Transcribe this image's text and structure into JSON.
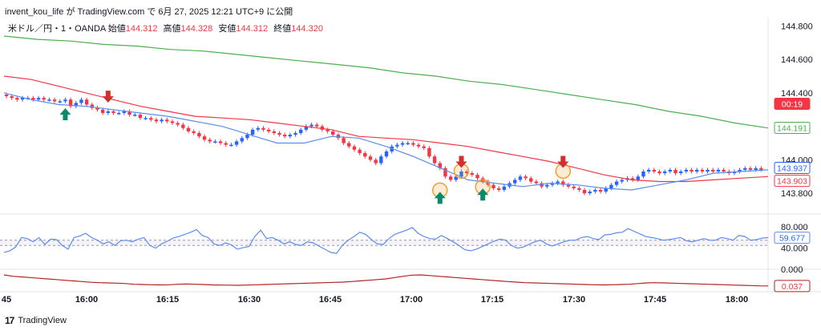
{
  "header": {
    "text": "invent_kou_life が TradingView.com で 6月 27, 2025 12:21 UTC+9 に公開"
  },
  "symbol": {
    "name": "米ドル／円・1・OANDA",
    "open_label": "始値",
    "open": "144.312",
    "high_label": "高値",
    "high": "144.328",
    "low_label": "安値",
    "low": "144.312",
    "close_label": "終値",
    "close": "144.320"
  },
  "footer": {
    "brand": "TradingView",
    "logo_text": "17"
  },
  "colors": {
    "up": "#2962ff",
    "down": "#f23645",
    "ema_fast": "#5b8def",
    "ema_mid": "#f23645",
    "ema_slow": "#4caf50",
    "rsi": "#5b8def",
    "sub": "#b22222",
    "arrow_down": "#d32f2f",
    "arrow_up": "#0b8a6b",
    "circle": "#f0a030"
  },
  "chart_data": [
    {
      "type": "candlestick",
      "title": "米ドル／円・1・OANDA",
      "ylim": [
        143.7,
        144.85
      ],
      "y_ticks": [
        "144.800",
        "144.600",
        "144.400",
        "144.000",
        "143.800"
      ],
      "x_ticks": [
        "45",
        "16:00",
        "16:15",
        "16:30",
        "16:45",
        "17:00",
        "17:15",
        "17:30",
        "17:45",
        "18:00"
      ],
      "price_labels": [
        {
          "text": "00:19",
          "value": 144.335,
          "color": "#f23645"
        },
        {
          "text": "144.191",
          "value": 144.191,
          "color": "#4caf50"
        },
        {
          "text": "143.937",
          "value": 143.937,
          "color": "#2962ff"
        },
        {
          "text": "143.903",
          "value": 143.903,
          "color": "#f23645"
        }
      ],
      "closes": [
        144.38,
        144.37,
        144.36,
        144.37,
        144.37,
        144.36,
        144.37,
        144.36,
        144.36,
        144.35,
        144.35,
        144.36,
        144.32,
        144.34,
        144.36,
        144.33,
        144.31,
        144.3,
        144.28,
        144.29,
        144.28,
        144.28,
        144.29,
        144.27,
        144.27,
        144.25,
        144.25,
        144.24,
        144.23,
        144.24,
        144.23,
        144.22,
        144.21,
        144.19,
        144.17,
        144.16,
        144.14,
        144.12,
        144.11,
        144.11,
        144.1,
        144.09,
        144.09,
        144.11,
        144.13,
        144.15,
        144.18,
        144.19,
        144.18,
        144.17,
        144.16,
        144.15,
        144.14,
        144.15,
        144.16,
        144.18,
        144.2,
        144.21,
        144.2,
        144.18,
        144.17,
        144.15,
        144.13,
        144.1,
        144.08,
        144.06,
        144.04,
        144.02,
        144.0,
        143.98,
        144.02,
        144.05,
        144.08,
        144.09,
        144.1,
        144.1,
        144.09,
        144.08,
        144.07,
        144.02,
        143.98,
        143.95,
        143.9,
        143.88,
        143.9,
        143.93,
        143.92,
        143.91,
        143.89,
        143.87,
        143.85,
        143.83,
        143.82,
        143.84,
        143.86,
        143.88,
        143.9,
        143.89,
        143.87,
        143.86,
        143.84,
        143.85,
        143.86,
        143.87,
        143.85,
        143.84,
        143.83,
        143.82,
        143.8,
        143.81,
        143.82,
        143.81,
        143.83,
        143.85,
        143.87,
        143.88,
        143.89,
        143.88,
        143.9,
        143.93,
        143.94,
        143.93,
        143.92,
        143.93,
        143.94,
        143.92,
        143.93,
        143.94,
        143.93,
        143.94,
        143.93,
        143.94,
        143.93,
        143.94,
        143.93,
        143.92,
        143.93,
        143.94,
        143.95,
        143.94,
        143.95,
        143.94
      ],
      "ema_fast": [
        144.4,
        144.36,
        144.33,
        144.32,
        144.3,
        144.28,
        144.26,
        144.23,
        144.2,
        144.15,
        144.1,
        144.1,
        144.14,
        144.13,
        144.08,
        144.02,
        143.95,
        143.88,
        143.86,
        143.84,
        143.86,
        143.85,
        143.83,
        143.82,
        143.85,
        143.88,
        143.92,
        143.93,
        143.94
      ],
      "ema_mid": [
        144.5,
        144.48,
        144.44,
        144.4,
        144.36,
        144.32,
        144.29,
        144.26,
        144.25,
        144.24,
        144.22,
        144.2,
        144.18,
        144.14,
        144.13,
        144.12,
        144.1,
        144.08,
        144.05,
        144.02,
        143.99,
        143.95,
        143.91,
        143.88,
        143.87,
        143.87,
        143.88,
        143.89,
        143.9
      ],
      "ema_slow": [
        144.74,
        144.72,
        144.71,
        144.69,
        144.68,
        144.66,
        144.65,
        144.63,
        144.61,
        144.59,
        144.57,
        144.55,
        144.52,
        144.5,
        144.47,
        144.45,
        144.42,
        144.39,
        144.36,
        144.33,
        144.29,
        144.26,
        144.22,
        144.19
      ],
      "markers": [
        {
          "type": "arrow-up",
          "index": 11,
          "value": 144.27
        },
        {
          "type": "arrow-down",
          "index": 19,
          "value": 144.38
        },
        {
          "type": "circle-arrow-down",
          "index": 85,
          "value": 143.99
        },
        {
          "type": "circle-arrow-up",
          "index": 81,
          "value": 143.77
        },
        {
          "type": "circle-arrow-up",
          "index": 89,
          "value": 143.79
        },
        {
          "type": "circle-arrow-down",
          "index": 104,
          "value": 143.99
        }
      ]
    },
    {
      "type": "line",
      "name_hidden": true,
      "ylim": [
        0,
        100
      ],
      "y_ticks": [
        "80.000",
        "40.000",
        "0.000"
      ],
      "levels": [
        55,
        45
      ],
      "current_label": "59.677",
      "current_value": 59.677,
      "values": [
        32,
        35,
        42,
        60,
        58,
        52,
        60,
        47,
        57,
        56,
        45,
        38,
        60,
        63,
        68,
        60,
        55,
        48,
        52,
        45,
        54,
        55,
        52,
        57,
        60,
        45,
        40,
        48,
        53,
        59,
        62,
        66,
        70,
        75,
        64,
        60,
        48,
        45,
        50,
        46,
        38,
        41,
        43,
        62,
        74,
        58,
        60,
        55,
        48,
        52,
        47,
        45,
        52,
        50,
        44,
        38,
        32,
        30,
        45,
        55,
        62,
        70,
        66,
        56,
        48,
        47,
        58,
        66,
        70,
        74,
        79,
        68,
        62,
        58,
        57,
        64,
        58,
        52,
        45,
        37,
        35,
        38,
        43,
        48,
        53,
        57,
        55,
        45,
        40,
        42,
        47,
        52,
        55,
        48,
        44,
        48,
        52,
        55,
        55,
        60,
        62,
        58,
        56,
        65,
        66,
        69,
        70,
        77,
        72,
        67,
        62,
        60,
        58,
        55,
        56,
        58,
        60,
        54,
        52,
        55,
        58,
        55,
        55,
        60,
        58,
        55,
        64,
        62,
        55,
        56,
        59,
        60
      ]
    },
    {
      "type": "line",
      "ylim": [
        0,
        0.15
      ],
      "current_label": "0.037",
      "current_value": 0.037,
      "values": [
        0.12,
        0.11,
        0.105,
        0.1,
        0.095,
        0.09,
        0.085,
        0.08,
        0.075,
        0.07,
        0.065,
        0.062,
        0.06,
        0.058,
        0.055,
        0.05,
        0.048,
        0.046,
        0.045,
        0.046,
        0.05,
        0.052,
        0.05,
        0.048,
        0.045,
        0.044,
        0.043,
        0.042,
        0.044,
        0.046,
        0.048,
        0.05,
        0.052,
        0.054,
        0.056,
        0.058,
        0.06,
        0.062,
        0.064,
        0.066,
        0.07,
        0.075,
        0.08,
        0.085,
        0.09,
        0.1,
        0.11,
        0.118,
        0.12,
        0.115,
        0.11,
        0.105,
        0.1,
        0.095,
        0.09,
        0.085,
        0.08,
        0.075,
        0.07,
        0.066,
        0.062,
        0.06,
        0.058,
        0.056,
        0.054,
        0.052,
        0.05,
        0.048,
        0.046,
        0.045,
        0.046,
        0.048,
        0.05,
        0.055,
        0.06,
        0.062,
        0.06,
        0.058,
        0.056,
        0.054,
        0.052,
        0.05,
        0.048,
        0.046,
        0.044,
        0.042,
        0.04,
        0.038,
        0.037
      ]
    }
  ]
}
